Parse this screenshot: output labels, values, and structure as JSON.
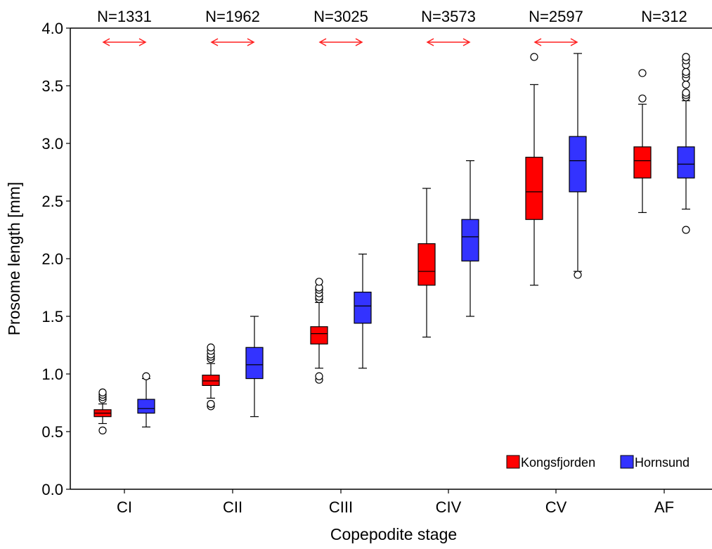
{
  "chart_data": {
    "type": "box",
    "xlabel": "Copepodite stage",
    "ylabel": "Prosome length [mm]",
    "ylim": [
      0.0,
      4.0
    ],
    "yticks": [
      "0.0",
      "0.5",
      "1.0",
      "1.5",
      "2.0",
      "2.5",
      "3.0",
      "3.5",
      "4.0"
    ],
    "categories": [
      "CI",
      "CII",
      "CIII",
      "CIV",
      "CV",
      "AF"
    ],
    "sample_sizes": [
      "N=1331",
      "N=1962",
      "N=3025",
      "N=3573",
      "N=2597",
      "N=312"
    ],
    "significant_difference": [
      true,
      true,
      true,
      true,
      true,
      false
    ],
    "legend_position": "bottom-right",
    "series": [
      {
        "name": "Kongsfjorden",
        "color": "#ff0000",
        "boxes": [
          {
            "whisker_low": 0.57,
            "q1": 0.63,
            "median": 0.66,
            "q3": 0.69,
            "whisker_high": 0.74,
            "outliers": [
              0.51,
              0.78,
              0.8,
              0.82,
              0.84
            ]
          },
          {
            "whisker_low": 0.79,
            "q1": 0.9,
            "median": 0.94,
            "q3": 0.99,
            "whisker_high": 1.09,
            "outliers": [
              0.72,
              0.74,
              1.13,
              1.15,
              1.17,
              1.2,
              1.23
            ]
          },
          {
            "whisker_low": 1.05,
            "q1": 1.26,
            "median": 1.35,
            "q3": 1.41,
            "whisker_high": 1.62,
            "outliers": [
              0.95,
              0.98,
              1.65,
              1.67,
              1.7,
              1.73,
              1.75,
              1.8
            ]
          },
          {
            "whisker_low": 1.32,
            "q1": 1.77,
            "median": 1.89,
            "q3": 2.13,
            "whisker_high": 2.61,
            "outliers": []
          },
          {
            "whisker_low": 1.77,
            "q1": 2.34,
            "median": 2.58,
            "q3": 2.88,
            "whisker_high": 3.51,
            "outliers": [
              3.75
            ]
          },
          {
            "whisker_low": 2.4,
            "q1": 2.7,
            "median": 2.85,
            "q3": 2.97,
            "whisker_high": 3.34,
            "outliers": [
              3.39,
              3.61
            ]
          }
        ]
      },
      {
        "name": "Hornsund",
        "color": "#3333ff",
        "boxes": [
          {
            "whisker_low": 0.54,
            "q1": 0.66,
            "median": 0.7,
            "q3": 0.78,
            "whisker_high": 0.96,
            "outliers": [
              0.98
            ]
          },
          {
            "whisker_low": 0.63,
            "q1": 0.96,
            "median": 1.08,
            "q3": 1.23,
            "whisker_high": 1.5,
            "outliers": []
          },
          {
            "whisker_low": 1.05,
            "q1": 1.44,
            "median": 1.59,
            "q3": 1.71,
            "whisker_high": 2.04,
            "outliers": []
          },
          {
            "whisker_low": 1.5,
            "q1": 1.98,
            "median": 2.19,
            "q3": 2.34,
            "whisker_high": 2.85,
            "outliers": []
          },
          {
            "whisker_low": 1.89,
            "q1": 2.58,
            "median": 2.85,
            "q3": 3.06,
            "whisker_high": 3.78,
            "outliers": [
              1.86
            ]
          },
          {
            "whisker_low": 2.43,
            "q1": 2.7,
            "median": 2.82,
            "q3": 2.97,
            "whisker_high": 3.37,
            "outliers": [
              2.25,
              3.4,
              3.42,
              3.44,
              3.51,
              3.57,
              3.6,
              3.62,
              3.68,
              3.72,
              3.75
            ]
          }
        ]
      }
    ]
  }
}
